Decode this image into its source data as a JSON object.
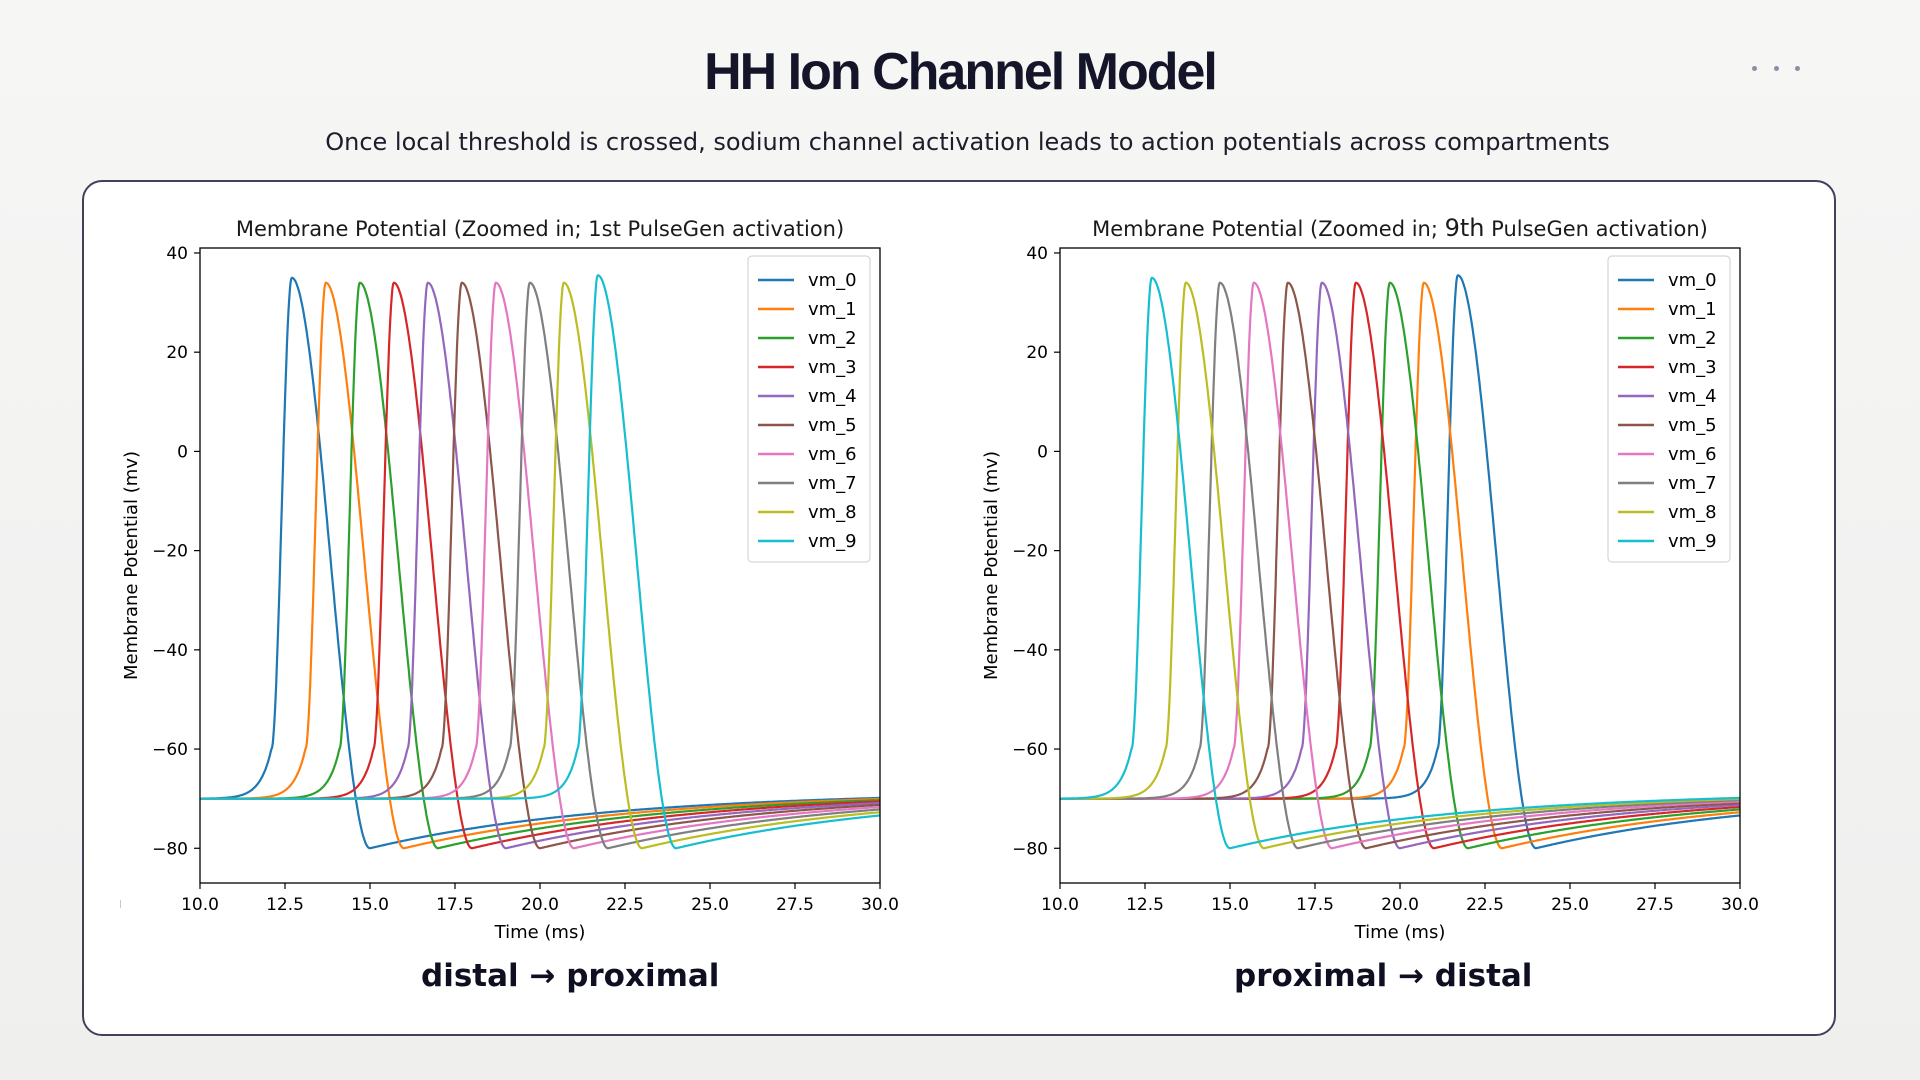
{
  "header": {
    "title": "HH Ion Channel Model",
    "subtitle": "Once local threshold is crossed, sodium channel activation leads to action potentials across compartments",
    "menu_icon": "more-horizontal-icon"
  },
  "colors": {
    "vm_0": "#1f77b4",
    "vm_1": "#ff7f0e",
    "vm_2": "#2ca02c",
    "vm_3": "#d62728",
    "vm_4": "#9467bd",
    "vm_5": "#8c564b",
    "vm_6": "#e377c2",
    "vm_7": "#7f7f7f",
    "vm_8": "#bcbd22",
    "vm_9": "#17becf"
  },
  "captions": {
    "left": "distal → proximal",
    "right": "proximal → distal"
  },
  "chart_data": [
    {
      "type": "line",
      "title": "Membrane Potential (Zoomed in; 1st PulseGen activation)",
      "xlabel": "Time (ms)",
      "ylabel": "Membrane Potential (mv)",
      "xlim": [
        10.0,
        30.0
      ],
      "ylim": [
        -87,
        41
      ],
      "xticks": [
        10.0,
        12.5,
        15.0,
        17.5,
        20.0,
        22.5,
        25.0,
        27.5,
        30.0
      ],
      "xtick_labels": [
        "10.0",
        "12.5",
        "15.0",
        "17.5",
        "20.0",
        "22.5",
        "25.0",
        "27.5",
        "30.0"
      ],
      "yticks": [
        40,
        20,
        0,
        -20,
        -40,
        -60,
        -80
      ],
      "ytick_labels": [
        "40",
        "20",
        "0",
        "−20",
        "−40",
        "−60",
        "−80"
      ],
      "legend_position": "top-right",
      "resting_potential": -70,
      "min_potential": -80,
      "series": [
        {
          "name": "vm_0",
          "peak_time": 12.7,
          "peak_value": 35
        },
        {
          "name": "vm_1",
          "peak_time": 13.7,
          "peak_value": 34
        },
        {
          "name": "vm_2",
          "peak_time": 14.7,
          "peak_value": 34
        },
        {
          "name": "vm_3",
          "peak_time": 15.7,
          "peak_value": 34
        },
        {
          "name": "vm_4",
          "peak_time": 16.7,
          "peak_value": 34
        },
        {
          "name": "vm_5",
          "peak_time": 17.7,
          "peak_value": 34
        },
        {
          "name": "vm_6",
          "peak_time": 18.7,
          "peak_value": 34
        },
        {
          "name": "vm_7",
          "peak_time": 19.7,
          "peak_value": 34
        },
        {
          "name": "vm_8",
          "peak_time": 20.7,
          "peak_value": 34
        },
        {
          "name": "vm_9",
          "peak_time": 21.7,
          "peak_value": 35.5
        }
      ]
    },
    {
      "type": "line",
      "title_parts": [
        "Membrane Potential (Zoomed in; ",
        "9th",
        " PulseGen activation)"
      ],
      "xlabel": "Time (ms)",
      "ylabel": "Membrane Potential (mv)",
      "xlim": [
        10.0,
        30.0
      ],
      "ylim": [
        -87,
        41
      ],
      "xticks": [
        10.0,
        12.5,
        15.0,
        17.5,
        20.0,
        22.5,
        25.0,
        27.5,
        30.0
      ],
      "xtick_labels": [
        "10.0",
        "12.5",
        "15.0",
        "17.5",
        "20.0",
        "22.5",
        "25.0",
        "27.5",
        "30.0"
      ],
      "yticks": [
        40,
        20,
        0,
        -20,
        -40,
        -60,
        -80
      ],
      "ytick_labels": [
        "40",
        "20",
        "0",
        "−20",
        "−40",
        "−60",
        "−80"
      ],
      "legend_position": "top-right",
      "resting_potential": -70,
      "min_potential": -80,
      "series": [
        {
          "name": "vm_0",
          "peak_time": 21.7,
          "peak_value": 35.5
        },
        {
          "name": "vm_1",
          "peak_time": 20.7,
          "peak_value": 34
        },
        {
          "name": "vm_2",
          "peak_time": 19.7,
          "peak_value": 34
        },
        {
          "name": "vm_3",
          "peak_time": 18.7,
          "peak_value": 34
        },
        {
          "name": "vm_4",
          "peak_time": 17.7,
          "peak_value": 34
        },
        {
          "name": "vm_5",
          "peak_time": 16.7,
          "peak_value": 34
        },
        {
          "name": "vm_6",
          "peak_time": 15.7,
          "peak_value": 34
        },
        {
          "name": "vm_7",
          "peak_time": 14.7,
          "peak_value": 34
        },
        {
          "name": "vm_8",
          "peak_time": 13.7,
          "peak_value": 34
        },
        {
          "name": "vm_9",
          "peak_time": 12.7,
          "peak_value": 35
        }
      ]
    }
  ]
}
